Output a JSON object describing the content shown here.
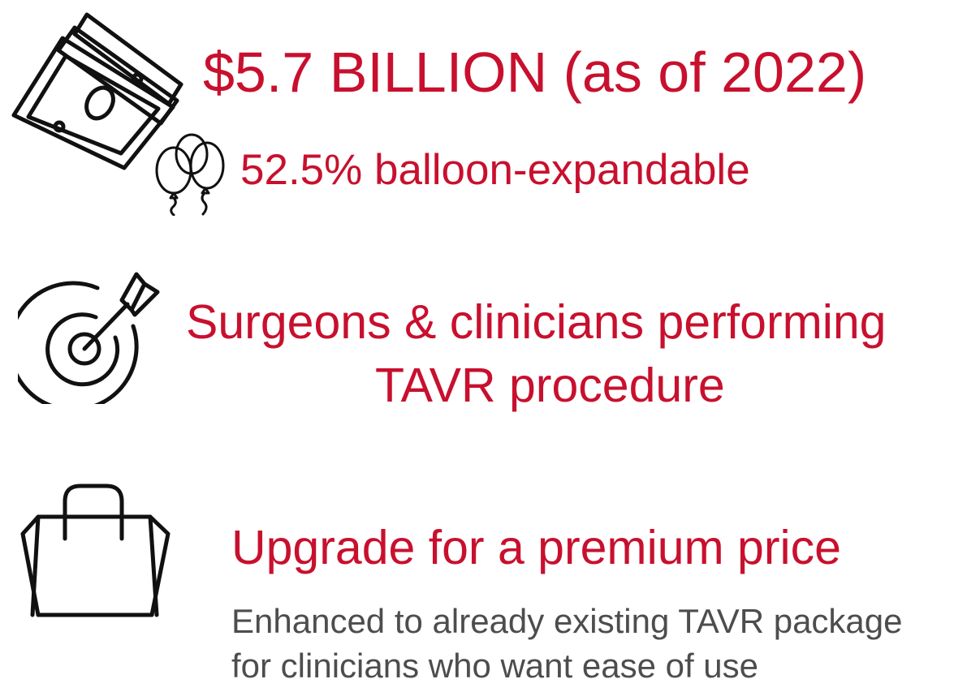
{
  "market": {
    "size_text": "$5.7 BILLION (as of 2022)",
    "balloon_text": "52.5% balloon-expandable",
    "money_icon": "money-stack-icon",
    "balloon_icon": "balloons-icon"
  },
  "target": {
    "line1": "Surgeons & clinicians performing",
    "line2": "TAVR procedure",
    "icon": "target-arrow-icon"
  },
  "upgrade": {
    "title": "Upgrade for a premium price",
    "line1": "Enhanced to already existing TAVR package",
    "line2": "for clinicians who want ease of use",
    "icon": "shopping-bag-icon"
  },
  "colors": {
    "accent": "#c8102e",
    "body_text": "#4d4d4f",
    "icon_stroke": "#111111"
  }
}
